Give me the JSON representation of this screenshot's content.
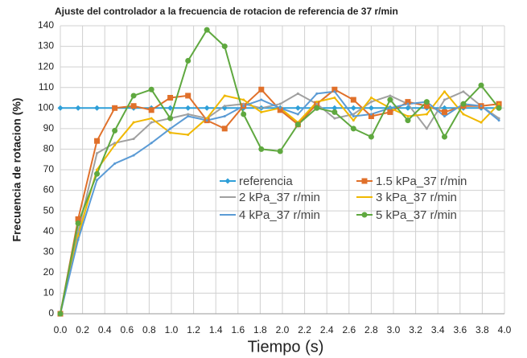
{
  "chart_data": {
    "type": "line",
    "title": "Ajuste del controlador a la frecuencia de rotacion de referencia de 37 r/min",
    "xlabel": "Tiempo (s)",
    "ylabel": "Frecuencia  de rotacion (%)",
    "x": [
      0,
      0.16,
      0.33,
      0.49,
      0.66,
      0.82,
      0.99,
      1.15,
      1.32,
      1.48,
      1.65,
      1.81,
      1.98,
      2.14,
      2.31,
      2.47,
      2.64,
      2.8,
      2.97,
      3.13,
      3.3,
      3.46,
      3.63,
      3.79,
      3.95
    ],
    "series": [
      {
        "name": "referencia",
        "color": "#2e9fd8",
        "marker": "diamond",
        "values": [
          100,
          100,
          100,
          100,
          100,
          100,
          100,
          100,
          100,
          100,
          100,
          100,
          100,
          100,
          100,
          100,
          100,
          100,
          100,
          100,
          100,
          100,
          100,
          100,
          100
        ]
      },
      {
        "name": "1.5 kPa_37 r/min",
        "color": "#e0702a",
        "marker": "square",
        "values": [
          0,
          46,
          84,
          100,
          101,
          99,
          105,
          106,
          94,
          90,
          101,
          109,
          99,
          92,
          102,
          109,
          104,
          96,
          98,
          103,
          101,
          98,
          101,
          101,
          102
        ]
      },
      {
        "name": "2 kPa_37 r/min",
        "color": "#a0a0a0",
        "marker": "line",
        "values": [
          0,
          40,
          78,
          83,
          85,
          93,
          95,
          97,
          95,
          101,
          102,
          100,
          102,
          107,
          102,
          95,
          97,
          103,
          106,
          102,
          90,
          104,
          108,
          101,
          95
        ]
      },
      {
        "name": "3 kPa_37 r/min",
        "color": "#f0b800",
        "marker": "line",
        "values": [
          0,
          38,
          70,
          82,
          93,
          95,
          88,
          87,
          95,
          106,
          104,
          98,
          100,
          93,
          103,
          105,
          94,
          105,
          100,
          96,
          97,
          108,
          97,
          93,
          102
        ]
      },
      {
        "name": "4 kPa_37 r/min",
        "color": "#5b9bd5",
        "marker": "line",
        "values": [
          0,
          36,
          65,
          73,
          77,
          83,
          90,
          96,
          94,
          96,
          101,
          104,
          100,
          97,
          107,
          108,
          96,
          97,
          100,
          102,
          103,
          96,
          102,
          101,
          94
        ]
      },
      {
        "name": "5 kPa_37 r/min",
        "color": "#5fa83f",
        "marker": "circle",
        "values": [
          0,
          44,
          68,
          89,
          106,
          109,
          95,
          123,
          138,
          130,
          97,
          80,
          79,
          92,
          100,
          98,
          90,
          86,
          104,
          94,
          103,
          86,
          102,
          111,
          100
        ]
      }
    ],
    "xlim": [
      0,
      4
    ],
    "xticks": [
      {
        "value": 0,
        "label": "0.0"
      },
      0.2,
      0.4,
      0.6,
      0.8,
      {
        "value": 1,
        "label": "1.0"
      },
      1.2,
      1.4,
      1.6,
      1.8,
      {
        "value": 2,
        "label": "2.0"
      },
      2.2,
      2.4,
      2.6,
      2.8,
      {
        "value": 3,
        "label": "3.0"
      },
      3.2,
      3.4,
      3.6,
      3.8,
      {
        "value": 4,
        "label": "4.0"
      }
    ],
    "ylim": [
      0,
      140
    ],
    "yticks": [
      0,
      10,
      20,
      30,
      40,
      50,
      60,
      70,
      80,
      90,
      100,
      110,
      120,
      130,
      140
    ],
    "grid": true,
    "legend": "center"
  }
}
